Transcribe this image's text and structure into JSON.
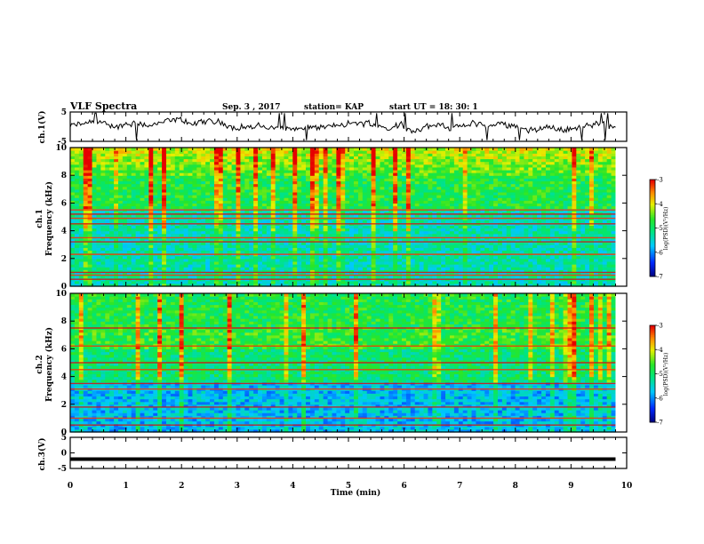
{
  "header": {
    "title": "VLF Spectra",
    "date": "Sep. 3 , 2017",
    "station": "station= KAP",
    "start": "start UT = 18: 30: 1"
  },
  "chart_data": [
    {
      "type": "line",
      "name": "ch1-waveform",
      "ylabel": "ch.1(V)",
      "ylim": [
        -5,
        5
      ],
      "yticks": [
        "5",
        "-5"
      ],
      "xlim": [
        0,
        10
      ]
    },
    {
      "type": "heatmap",
      "name": "ch1-spectrogram",
      "ylabel_line1": "ch.1",
      "ylabel_line2": "Frequency (kHz)",
      "ylim": [
        0,
        10
      ],
      "yticks": [
        "0",
        "2",
        "4",
        "6",
        "8",
        "10"
      ],
      "xlim": [
        0,
        10
      ],
      "colorbar": {
        "label": "log(PSD)(V²/Hz)",
        "range": [
          -7,
          -3
        ],
        "ticks": [
          "-3",
          "-4",
          "-5",
          "-6",
          "-7"
        ]
      },
      "bands_khz": [
        0.5,
        0.8,
        1.0,
        2.3,
        3.2,
        3.5,
        4.5,
        4.9,
        5.2,
        5.5
      ]
    },
    {
      "type": "heatmap",
      "name": "ch2-spectrogram",
      "ylabel_line1": "ch.2",
      "ylabel_line2": "Frequency (kHz)",
      "ylim": [
        0,
        10
      ],
      "yticks": [
        "0",
        "2",
        "4",
        "6",
        "8",
        "10"
      ],
      "xlim": [
        0,
        10
      ],
      "colorbar": {
        "label": "log(PSD)(V²/Hz)",
        "range": [
          -7,
          -3
        ],
        "ticks": [
          "-3",
          "-4",
          "-5",
          "-6",
          "-7"
        ]
      },
      "bands_khz": [
        0.5,
        1.0,
        1.8,
        3.1,
        3.5,
        4.5,
        5.0,
        6.2,
        7.5
      ]
    },
    {
      "type": "line",
      "name": "ch3-waveform",
      "ylabel": "ch.3(V)",
      "ylim": [
        -5,
        5
      ],
      "yticks": [
        "5",
        "0",
        "-5"
      ],
      "xlim": [
        0,
        10
      ],
      "constant_value": -2
    }
  ],
  "x_axis": {
    "label": "Time (min)",
    "ticks": [
      "0",
      "1",
      "2",
      "3",
      "4",
      "5",
      "6",
      "7",
      "8",
      "9",
      "10"
    ],
    "data_end_min": 9.8
  }
}
